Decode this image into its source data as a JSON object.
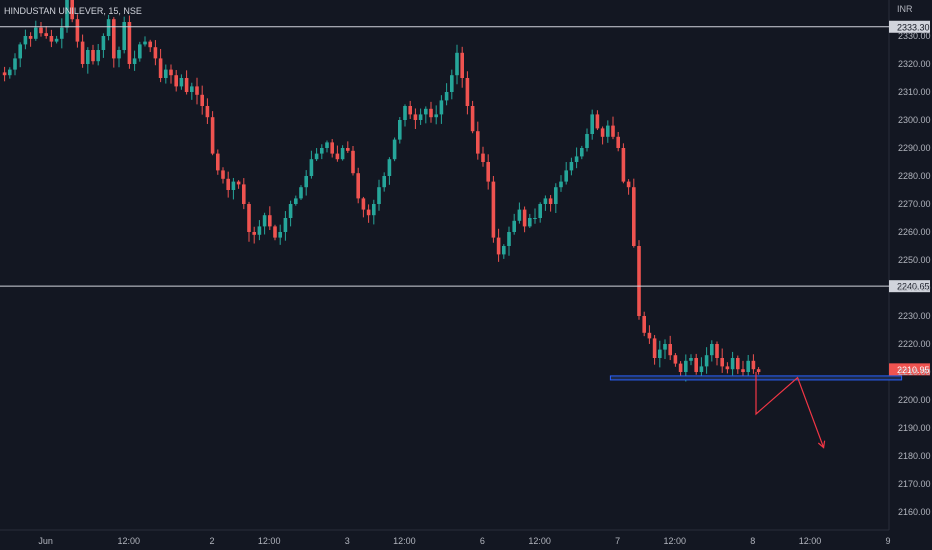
{
  "header": {
    "symbol_label": "HINDUSTAN UNILEVER, 15, NSE"
  },
  "currency": "INR",
  "colors": {
    "background": "#131722",
    "up": "#26a69a",
    "down": "#ef5350",
    "hline": "#d1d4dc",
    "zone_fill": "#1e2a4a",
    "zone_stroke": "#2962ff",
    "projection": "#f23645",
    "axis_text": "#b2b5be",
    "grid": "#1c202b"
  },
  "chart_data": {
    "type": "candlestick",
    "title": "HINDUSTAN UNILEVER, 15, NSE",
    "ylim": [
      2153,
      2337
    ],
    "ylabels": [
      "2160.00",
      "2170.00",
      "2180.00",
      "2190.00",
      "2200.00",
      "2210.00",
      "2220.00",
      "2230.00",
      "2240.00",
      "2250.00",
      "2260.00",
      "2270.00",
      "2280.00",
      "2290.00",
      "2300.00",
      "2310.00",
      "2320.00",
      "2330.00"
    ],
    "xlabels": [
      {
        "label": "Jun",
        "bar": 8
      },
      {
        "label": "12:00",
        "bar": 24
      },
      {
        "label": "2",
        "bar": 40
      },
      {
        "label": "12:00",
        "bar": 51
      },
      {
        "label": "3",
        "bar": 66
      },
      {
        "label": "12:00",
        "bar": 77
      },
      {
        "label": "6",
        "bar": 92
      },
      {
        "label": "12:00",
        "bar": 103
      },
      {
        "label": "7",
        "bar": 118
      },
      {
        "label": "12:00",
        "bar": 129
      },
      {
        "label": "8",
        "bar": 144
      },
      {
        "label": "12:00",
        "bar": 155
      },
      {
        "label": "9",
        "bar": 170
      }
    ],
    "horizontal_lines": [
      {
        "price": 2333.3,
        "label": "2333.30"
      },
      {
        "price": 2240.65,
        "label": "2240.65"
      }
    ],
    "last_price": {
      "price": 2210.95,
      "label": "2210.95"
    },
    "support_zone": {
      "start_bar": 117,
      "end_bar": 173,
      "price_low": 2207.2,
      "price_high": 2208.6
    },
    "projection_path": [
      {
        "bar": 145,
        "price": 2210
      },
      {
        "bar": 145,
        "price": 2195
      },
      {
        "bar": 153,
        "price": 2208
      },
      {
        "bar": 158,
        "price": 2183
      }
    ],
    "closes": [
      2316,
      2318,
      2322,
      2327,
      2330,
      2329,
      2333,
      2331,
      2330,
      2328,
      2329,
      2333,
      2345,
      2336,
      2328,
      2320,
      2325,
      2321,
      2325,
      2330,
      2336,
      2322,
      2325,
      2335,
      2320,
      2322,
      2327,
      2328,
      2326,
      2322,
      2315,
      2318,
      2316,
      2312,
      2315,
      2310,
      2312,
      2309,
      2305,
      2301,
      2288,
      2282,
      2279,
      2275,
      2278,
      2277,
      2270,
      2260,
      2259,
      2262,
      2266,
      2262,
      2258,
      2260,
      2265,
      2270,
      2272,
      2276,
      2280,
      2286,
      2288,
      2290,
      2292,
      2288,
      2286,
      2290,
      2289,
      2281,
      2272,
      2268,
      2266,
      2270,
      2276,
      2280,
      2286,
      2293,
      2300,
      2305,
      2302,
      2300,
      2302,
      2304,
      2301,
      2302,
      2307,
      2310,
      2316,
      2324,
      2315,
      2305,
      2296,
      2288,
      2285,
      2278,
      2258,
      2252,
      2255,
      2260,
      2264,
      2268,
      2262,
      2265,
      2265,
      2270,
      2272,
      2270,
      2276,
      2278,
      2282,
      2285,
      2287,
      2290,
      2295,
      2302,
      2297,
      2294,
      2298,
      2294,
      2290,
      2278,
      2276,
      2255,
      2230,
      2224,
      2222,
      2215,
      2218,
      2220,
      2216,
      2213,
      2210,
      2214,
      2215,
      2210,
      2212,
      2216,
      2220,
      2215,
      2212,
      2211,
      2215,
      2211,
      2210,
      2214,
      2211,
      2210
    ]
  }
}
